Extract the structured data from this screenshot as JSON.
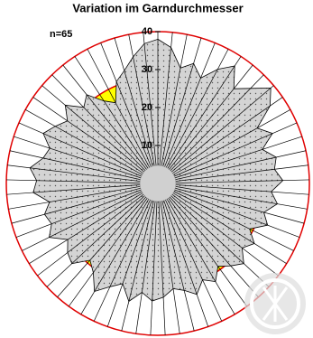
{
  "chart_data": {
    "type": "radar",
    "title": "Variation im Garndurchmesser",
    "annotation": "n=65",
    "values": [
      38,
      36,
      31,
      33,
      30,
      34,
      37,
      32,
      35,
      39,
      36,
      30,
      33,
      29,
      32,
      31,
      33,
      30,
      32,
      29,
      31,
      27,
      30,
      28,
      31,
      29,
      27,
      30,
      28,
      31,
      29,
      28,
      30,
      31,
      29,
      32,
      28,
      30,
      33,
      29,
      27,
      31,
      30,
      28,
      32,
      30,
      31,
      29,
      33,
      32,
      34,
      31,
      30,
      33,
      31,
      29,
      32,
      28,
      30,
      26,
      24,
      29,
      31,
      34,
      37
    ],
    "color": "#d4d4d4",
    "rlim": [
      0,
      40
    ],
    "rticks": [
      10,
      20,
      30,
      40
    ],
    "reference_value": 28,
    "reference_color": "#ffff00",
    "ring_color": "#e00000"
  }
}
